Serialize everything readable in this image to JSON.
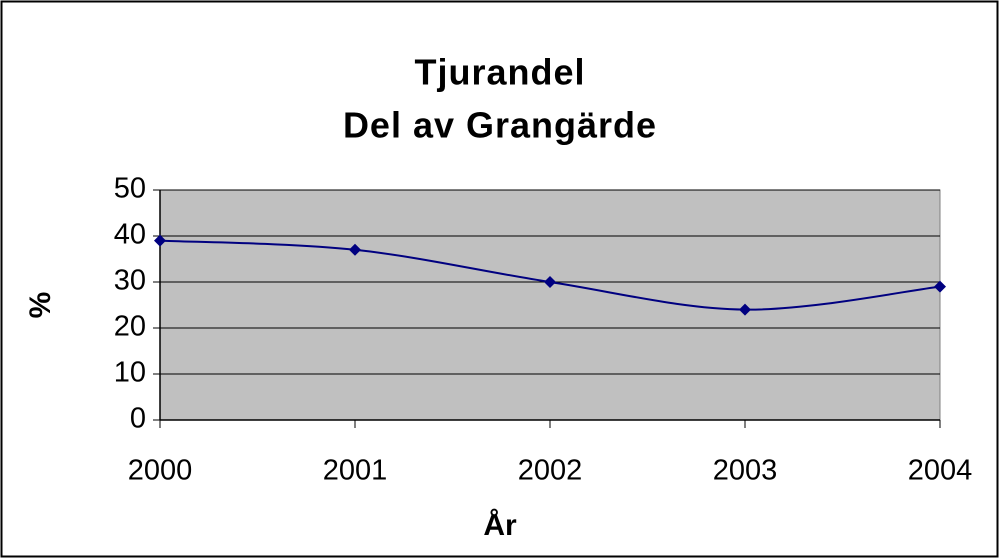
{
  "chart_data": {
    "type": "line",
    "title": [
      "Tjurandel",
      "Del av Grangärde"
    ],
    "x_label": "År",
    "y_label": "%",
    "x": [
      2000,
      2001,
      2002,
      2003,
      2004
    ],
    "xlim": [
      2000,
      2004
    ],
    "xticks": [
      2000,
      2001,
      2002,
      2003,
      2004
    ],
    "series": [
      {
        "name": "Tjurandel",
        "color": "#000080",
        "values": [
          39,
          37,
          30,
          24,
          29
        ]
      }
    ],
    "ylim": [
      0,
      50
    ],
    "yticks": [
      0,
      10,
      20,
      30,
      40,
      50
    ],
    "grid": true,
    "smooth": true,
    "plot_background": "#c0c0c0"
  }
}
